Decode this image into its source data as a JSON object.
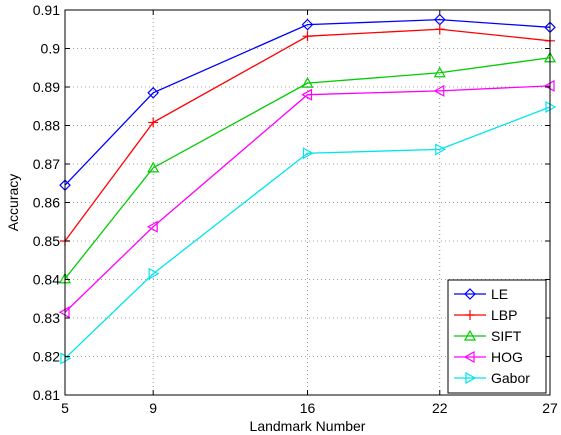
{
  "chart_data": {
    "type": "line",
    "title": "",
    "xlabel": "Landmark Number",
    "ylabel": "Accuracy",
    "x": [
      5,
      9,
      16,
      22,
      27
    ],
    "xticks": [
      "5",
      "9",
      "16",
      "22",
      "27"
    ],
    "xlim": [
      5,
      27
    ],
    "ylim": [
      0.81,
      0.91
    ],
    "yticks": [
      "0.81",
      "0.82",
      "0.83",
      "0.84",
      "0.85",
      "0.86",
      "0.87",
      "0.88",
      "0.89",
      "0.9",
      "0.91"
    ],
    "grid": true,
    "legend_position": "bottom-right",
    "series": [
      {
        "name": "LE",
        "color": "#0000ff",
        "marker": "diamond",
        "values": [
          0.8645,
          0.8885,
          0.9062,
          0.9075,
          0.9055
        ]
      },
      {
        "name": "LBP",
        "color": "#ff0000",
        "marker": "plus",
        "values": [
          0.85,
          0.8808,
          0.9032,
          0.905,
          0.902
        ]
      },
      {
        "name": "SIFT",
        "color": "#00cc00",
        "marker": "triangle-up",
        "values": [
          0.8402,
          0.869,
          0.891,
          0.8937,
          0.8976
        ]
      },
      {
        "name": "HOG",
        "color": "#ff00ff",
        "marker": "triangle-left",
        "values": [
          0.8315,
          0.8537,
          0.888,
          0.889,
          0.8903
        ]
      },
      {
        "name": "Gabor",
        "color": "#00e5ee",
        "marker": "triangle-right",
        "values": [
          0.8195,
          0.8415,
          0.8728,
          0.8738,
          0.8848
        ]
      }
    ]
  }
}
